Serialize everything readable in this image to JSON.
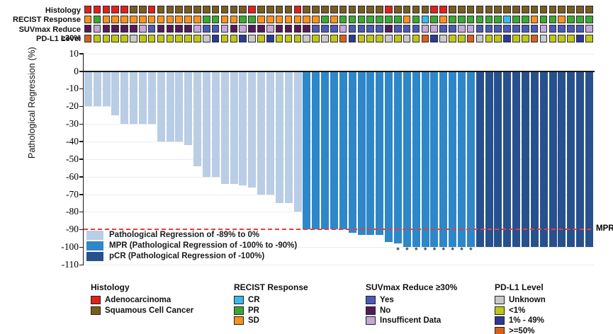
{
  "tracks": {
    "labels": [
      "Histology",
      "RECIST Response",
      "SUVmax Reduce ≥30%",
      "PD-L1 Level"
    ],
    "histology": [
      "A",
      "A",
      "A",
      "A",
      "A",
      "S",
      "S",
      "A",
      "S",
      "S",
      "S",
      "S",
      "S",
      "S",
      "S",
      "S",
      "S",
      "S",
      "A",
      "S",
      "S",
      "S",
      "S",
      "A",
      "S",
      "S",
      "S",
      "S",
      "S",
      "S",
      "S",
      "S",
      "S",
      "A",
      "S",
      "S",
      "S",
      "S",
      "A",
      "A",
      "S",
      "S",
      "S",
      "S",
      "S",
      "S",
      "S",
      "S",
      "S",
      "S",
      "S",
      "S",
      "S",
      "S",
      "S",
      "S"
    ],
    "recist": [
      "SD",
      "PR",
      "SD",
      "SD",
      "SD",
      "SD",
      "SD",
      "SD",
      "SD",
      "SD",
      "SD",
      "SD",
      "SD",
      "PR",
      "PR",
      "SD",
      "SD",
      "PR",
      "PR",
      "SD",
      "SD",
      "SD",
      "SD",
      "SD",
      "SD",
      "SD",
      "PR",
      "SD",
      "PR",
      "PR",
      "PR",
      "PR",
      "PR",
      "PR",
      "PR",
      "SD",
      "PR",
      "CR",
      "PR",
      "SD",
      "PR",
      "PR",
      "PR",
      "PR",
      "PR",
      "PR",
      "CR",
      "PR",
      "PR",
      "SD",
      "PR",
      "PR",
      "SD",
      "PR",
      "PR",
      "PR"
    ],
    "suvmax": [
      "No",
      "Ins",
      "No",
      "No",
      "No",
      "No",
      "Ins",
      "Yes",
      "No",
      "No",
      "No",
      "No",
      "Ins",
      "Yes",
      "Yes",
      "Ins",
      "No",
      "Ins",
      "No",
      "No",
      "Ins",
      "No",
      "No",
      "No",
      "No",
      "Yes",
      "Yes",
      "Yes",
      "Ins",
      "Yes",
      "Yes",
      "Yes",
      "Yes",
      "No",
      "Yes",
      "Yes",
      "Yes",
      "Ins",
      "Ins",
      "Yes",
      "Yes",
      "Ins",
      "Ins",
      "Yes",
      "Yes",
      "Yes",
      "Yes",
      "Yes",
      "Yes",
      "Yes",
      "Ins",
      "Yes",
      "Yes",
      "Yes",
      "Yes",
      "Ins"
    ],
    "pdl1": [
      "H",
      "L",
      "L",
      "L",
      "L",
      "U",
      "L",
      "L",
      "L",
      "L",
      "L",
      "L",
      "L",
      "U",
      "M",
      "L",
      "L",
      "M",
      "U",
      "L",
      "M",
      "L",
      "L",
      "L",
      "U",
      "L",
      "U",
      "L",
      "H",
      "M",
      "L",
      "L",
      "L",
      "U",
      "L",
      "U",
      "L",
      "H",
      "M",
      "U",
      "L",
      "L",
      "H",
      "U",
      "L",
      "L",
      "M",
      "L",
      "L",
      "H",
      "U",
      "L",
      "L",
      "L",
      "M",
      "L"
    ],
    "palette": {
      "A": "#e2201c",
      "S": "#7a5c20",
      "CR": "#3db9e9",
      "PR": "#3aa832",
      "SD": "#f6921e",
      "Yes": "#4a5ab5",
      "No": "#541a58",
      "Ins": "#c3a8d8",
      "U": "#c9c9c9",
      "L": "#bfc616",
      "M": "#2c3a94",
      "H": "#d4611e"
    }
  },
  "chart_data": {
    "type": "bar",
    "title": "",
    "xlabel": "",
    "ylabel": "Pathological Regression (%)",
    "ylim": [
      -110,
      10
    ],
    "yticks": [
      10,
      0,
      -10,
      -20,
      -30,
      -40,
      -50,
      -60,
      -70,
      -80,
      -90,
      -100,
      -110
    ],
    "grid": "horizontal",
    "values": [
      -20,
      -20,
      -20,
      -25,
      -30,
      -30,
      -30,
      -30,
      -40,
      -40,
      -40,
      -42,
      -54,
      -60,
      -60,
      -64,
      -64,
      -65,
      -66,
      -70,
      -70,
      -75,
      -75,
      -80,
      -90,
      -90,
      -90,
      -90,
      -90,
      -92,
      -93,
      -93,
      -93,
      -97,
      -98,
      -100,
      -100,
      -100,
      -100,
      -100,
      -100,
      -100,
      -100,
      -100,
      -100,
      -100,
      -100,
      -100,
      -100,
      -100,
      -100,
      -100,
      -100,
      -100,
      -100,
      -100
    ],
    "groups": [
      "light",
      "light",
      "light",
      "light",
      "light",
      "light",
      "light",
      "light",
      "light",
      "light",
      "light",
      "light",
      "light",
      "light",
      "light",
      "light",
      "light",
      "light",
      "light",
      "light",
      "light",
      "light",
      "light",
      "light",
      "mpr",
      "mpr",
      "mpr",
      "mpr",
      "mpr",
      "mpr",
      "mpr",
      "mpr",
      "mpr",
      "mpr",
      "mpr",
      "mpr",
      "mpr",
      "mpr",
      "mpr",
      "mpr",
      "mpr",
      "mpr",
      "mpr",
      "pcr",
      "pcr",
      "pcr",
      "pcr",
      "pcr",
      "pcr",
      "pcr",
      "pcr",
      "pcr",
      "pcr",
      "pcr",
      "pcr",
      "pcr"
    ],
    "group_colors": {
      "light": "#b9cde5",
      "mpr": "#2e87c8",
      "pcr": "#27518e"
    },
    "asterisk_bars": [
      35,
      36,
      37,
      38,
      39,
      40,
      41,
      42,
      43
    ],
    "asterisk_char": "*",
    "reference_line": {
      "y": -90,
      "label": "MPR",
      "color": "#ee3b33",
      "style": "dashed"
    },
    "legend_position": "lower left",
    "legend": [
      {
        "label": "Pathological Regression of -89% to 0%",
        "color": "#b9cde5"
      },
      {
        "label": "MPR (Pathological Regression of -100% to -90%)",
        "color": "#2e87c8"
      },
      {
        "label": "pCR (Pathological Regression of -100%)",
        "color": "#27518e"
      }
    ]
  },
  "bottom_legends": [
    {
      "title": "Histology",
      "items": [
        {
          "label": "Adenocarcinoma",
          "color": "#e2201c"
        },
        {
          "label": "Squamous Cell Cancer",
          "color": "#7a5c20"
        }
      ]
    },
    {
      "title": "RECIST Response",
      "items": [
        {
          "label": "CR",
          "color": "#3db9e9"
        },
        {
          "label": "PR",
          "color": "#3aa832"
        },
        {
          "label": "SD",
          "color": "#f6921e"
        }
      ]
    },
    {
      "title": "SUVmax Reduce ≥30%",
      "items": [
        {
          "label": "Yes",
          "color": "#4a5ab5"
        },
        {
          "label": "No",
          "color": "#541a58"
        },
        {
          "label": "Insufficent Data",
          "color": "#c3a8d8"
        }
      ]
    },
    {
      "title": "PD-L1 Level",
      "items": [
        {
          "label": "Unknown",
          "color": "#c9c9c9"
        },
        {
          "label": "<1%",
          "color": "#bfc616"
        },
        {
          "label": "1% - 49%",
          "color": "#2c3a94"
        },
        {
          "label": ">=50%",
          "color": "#d4611e"
        }
      ]
    }
  ]
}
